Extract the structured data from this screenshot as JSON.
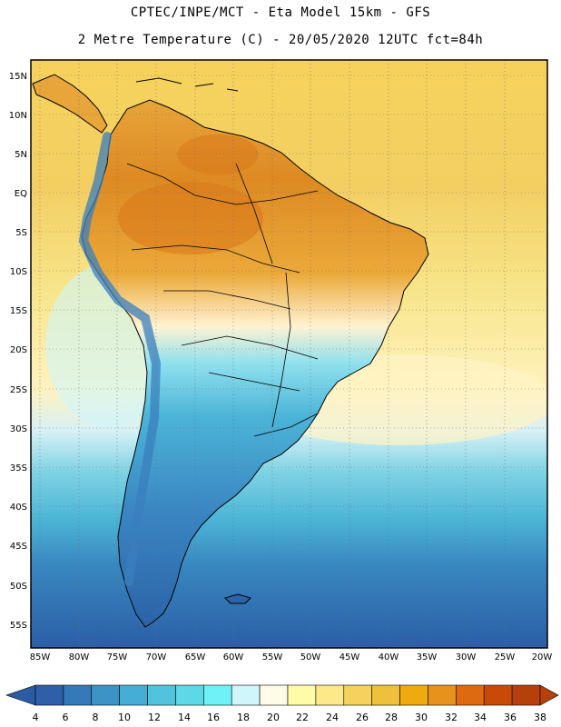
{
  "header": {
    "line1": "CPTEC/INPE/MCT -  Eta Model 15km - GFS",
    "line2": "2 Metre Temperature (C) - 20/05/2020 12UTC fct=84h"
  },
  "map": {
    "lat_labels": [
      "15N",
      "10N",
      "5N",
      "EQ",
      "5S",
      "10S",
      "15S",
      "20S",
      "25S",
      "30S",
      "35S",
      "40S",
      "45S",
      "50S",
      "55S"
    ],
    "lon_labels": [
      "85W",
      "80W",
      "75W",
      "70W",
      "65W",
      "60W",
      "55W",
      "50W",
      "45W",
      "40W",
      "35W",
      "30W",
      "25W",
      "20W"
    ]
  },
  "colorbar": {
    "ticks": [
      "4",
      "6",
      "8",
      "10",
      "12",
      "14",
      "16",
      "18",
      "20",
      "22",
      "24",
      "26",
      "28",
      "30",
      "32",
      "34",
      "36",
      "38"
    ],
    "colors": [
      "#2e5fa8",
      "#3579b8",
      "#3c93c6",
      "#46aed4",
      "#52c3dc",
      "#5ed7e6",
      "#6ef2f8",
      "#cff6fb",
      "#fffbe6",
      "#fffca8",
      "#fde88a",
      "#f6d25c",
      "#efc03c",
      "#efaa10",
      "#e8921e",
      "#de6a10",
      "#c84a08",
      "#b6400a"
    ],
    "left_arrow_color": "#2a5ca3",
    "right_arrow_color": "#b6400a"
  },
  "fields": {
    "ocean_north": "#f3cd5c",
    "ocean_south": "#2c63a7",
    "land_hot": "#db8b1e",
    "land_cool": "#46aed4"
  }
}
